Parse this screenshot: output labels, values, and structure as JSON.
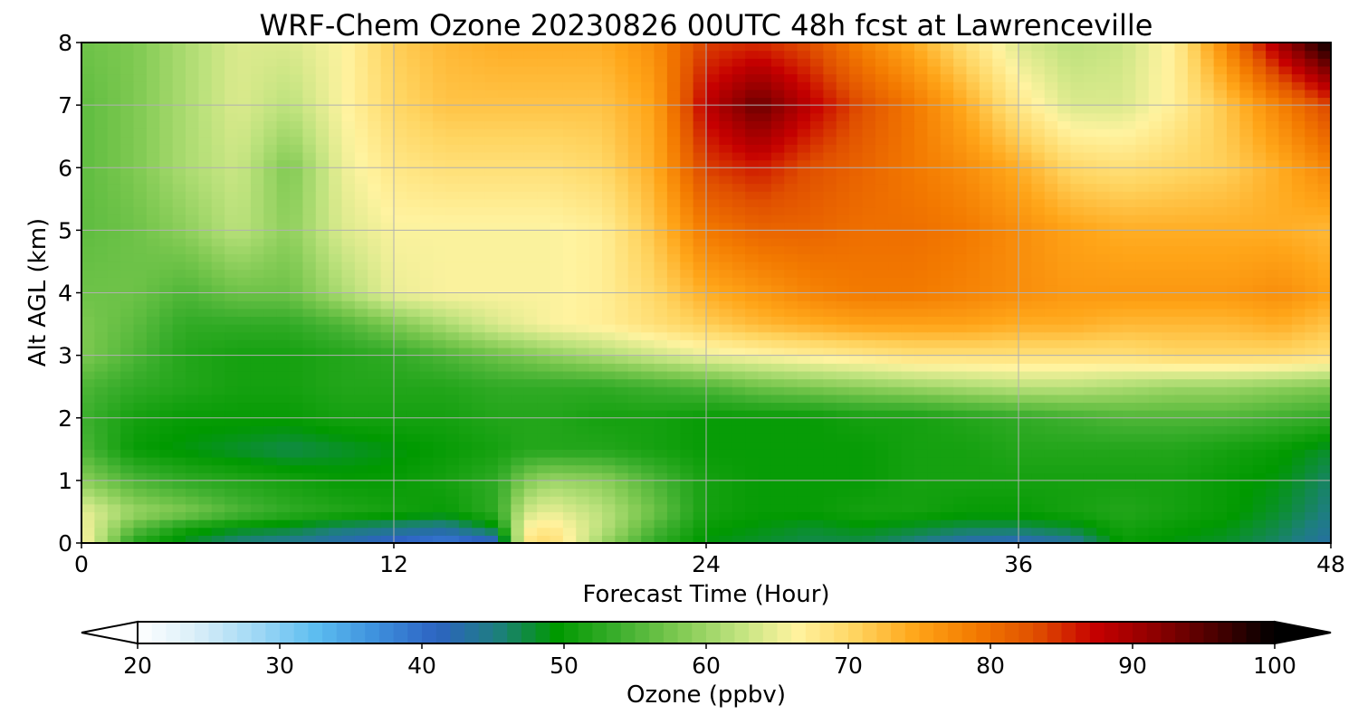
{
  "chart_data": {
    "type": "heatmap",
    "title": "WRF-Chem Ozone  20230826 00UTC 48h fcst at Lawrenceville",
    "xlabel": "Forecast Time (Hour)",
    "ylabel": "Alt AGL (km)",
    "xlim": [
      0,
      48
    ],
    "ylim": [
      0,
      8
    ],
    "xticks": [
      0,
      12,
      24,
      36,
      48
    ],
    "yticks": [
      0,
      1,
      2,
      3,
      4,
      5,
      6,
      7,
      8
    ],
    "grid": true,
    "colorbar": {
      "label": "Ozone  (ppbv)",
      "min": 20,
      "max": 100,
      "ticks": [
        20,
        30,
        40,
        50,
        60,
        70,
        80,
        90,
        100
      ],
      "extend": "both",
      "colors": [
        "#ffffff",
        "#d8eef8",
        "#9fd8f5",
        "#5bbcf0",
        "#3d8fdc",
        "#2d63c2",
        "#1e7e80",
        "#009900",
        "#3aae2c",
        "#7cc850",
        "#bde27d",
        "#fff3a0",
        "#ffd460",
        "#ffa518",
        "#f37a00",
        "#e04f00",
        "#c60000",
        "#8e0000",
        "#4a0000",
        "#000000"
      ]
    },
    "x": [
      0,
      2,
      4,
      6,
      8,
      10,
      12,
      14,
      16,
      17,
      18,
      20,
      22,
      24,
      26,
      28,
      30,
      32,
      34,
      36,
      38,
      40,
      42,
      44,
      46,
      48
    ],
    "y": [
      0,
      0.25,
      0.5,
      1,
      1.5,
      2,
      2.5,
      3,
      3.5,
      4,
      5,
      6,
      7,
      8
    ],
    "z": [
      [
        67,
        52,
        48,
        45,
        44,
        42,
        40,
        38,
        40,
        68,
        70,
        60,
        53,
        49,
        48,
        47,
        47,
        45,
        42,
        41,
        43,
        50,
        49,
        48,
        46,
        43
      ],
      [
        66,
        56,
        51,
        49,
        48,
        46,
        45,
        44,
        49,
        66,
        68,
        62,
        55,
        50,
        49,
        48,
        49,
        48,
        47,
        47,
        48,
        51,
        50,
        49,
        47,
        44
      ],
      [
        65,
        60,
        58,
        55,
        53,
        52,
        51,
        50,
        53,
        63,
        65,
        62,
        57,
        51,
        50,
        50,
        51,
        51,
        50,
        50,
        51,
        52,
        51,
        50,
        48,
        45
      ],
      [
        59,
        55,
        53,
        52,
        51,
        50,
        50,
        51,
        53,
        58,
        60,
        59,
        55,
        51,
        50,
        50,
        50,
        51,
        51,
        51,
        51,
        51,
        51,
        50,
        49,
        46
      ],
      [
        55,
        50,
        49,
        48,
        47,
        48,
        49,
        50,
        51,
        52,
        52,
        52,
        51,
        50,
        50,
        50,
        50,
        51,
        51,
        52,
        52,
        52,
        52,
        51,
        50,
        48
      ],
      [
        54,
        51,
        50,
        50,
        50,
        51,
        51,
        51,
        52,
        52,
        52,
        51,
        51,
        50,
        50,
        50,
        51,
        51,
        52,
        53,
        54,
        55,
        55,
        55,
        54,
        53
      ],
      [
        55,
        53,
        52,
        51,
        51,
        52,
        52,
        52,
        53,
        53,
        53,
        53,
        54,
        55,
        57,
        58,
        59,
        60,
        61,
        62,
        62,
        61,
        60,
        60,
        59,
        58
      ],
      [
        58,
        55,
        52,
        51,
        51,
        52,
        53,
        55,
        57,
        58,
        59,
        61,
        63,
        65,
        66,
        67,
        68,
        69,
        69,
        69,
        69,
        69,
        70,
        70,
        70,
        69
      ],
      [
        58,
        56,
        53,
        53,
        53,
        55,
        58,
        61,
        64,
        65,
        66,
        67,
        69,
        71,
        73,
        74,
        75,
        75,
        75,
        74,
        74,
        73,
        73,
        73,
        74,
        72
      ],
      [
        57,
        57,
        55,
        57,
        57,
        61,
        65,
        66,
        66,
        66,
        66,
        67,
        70,
        74,
        76,
        78,
        79,
        79,
        78,
        77,
        76,
        76,
        76,
        76,
        77,
        75
      ],
      [
        56,
        57,
        59,
        62,
        59,
        64,
        66,
        66,
        66,
        66,
        66,
        67,
        72,
        79,
        81,
        81,
        80,
        80,
        79,
        77,
        75,
        74,
        74,
        74,
        74,
        73
      ],
      [
        56,
        58,
        61,
        63,
        58,
        65,
        68,
        69,
        69,
        69,
        69,
        70,
        74,
        84,
        86,
        83,
        81,
        79,
        77,
        74,
        70,
        69,
        70,
        71,
        74,
        78
      ],
      [
        56,
        58,
        61,
        64,
        62,
        66,
        70,
        72,
        72,
        72,
        72,
        72,
        75,
        88,
        94,
        88,
        83,
        79,
        74,
        68,
        64,
        64,
        67,
        72,
        78,
        84
      ],
      [
        57,
        58,
        61,
        64,
        64,
        66,
        71,
        73,
        74,
        74,
        74,
        74,
        77,
        84,
        85,
        83,
        78,
        74,
        69,
        64,
        62,
        63,
        67,
        78,
        90,
        100
      ]
    ]
  }
}
